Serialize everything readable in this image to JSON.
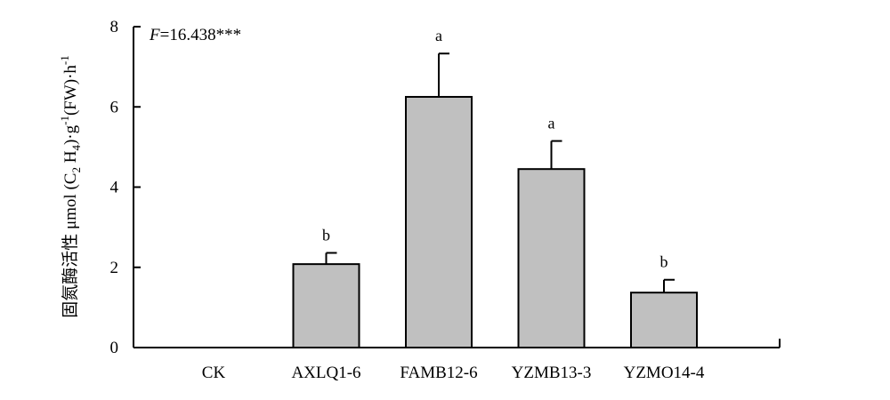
{
  "chart_data": {
    "type": "bar",
    "title": "",
    "xlabel": "",
    "ylabel": "固氮酶活性 μmol (C2 H4)·g-1(FW)·h-1",
    "ylabel_parts": {
      "prefix": "固氮酶活性 μmol (C",
      "sub1": "2",
      "mid1": " H",
      "sub2": "4",
      "mid2": ")·g",
      "sup1": "-1",
      "mid3": "(FW)·h",
      "sup2": "-1"
    },
    "ylim": [
      0,
      8
    ],
    "yticks": [
      "0",
      "2",
      "4",
      "6",
      "8"
    ],
    "categories": [
      "CK",
      "AXLQ1-6",
      "FAMB12-6",
      "YZMB13-3",
      "YZMO14-4"
    ],
    "values": [
      0,
      2.08,
      6.25,
      4.45,
      1.37
    ],
    "errors": [
      0,
      0.28,
      1.08,
      0.7,
      0.32
    ],
    "significance": [
      "",
      "b",
      "a",
      "a",
      "b"
    ],
    "stat_annotation": {
      "italic": "F",
      "rest": "=16.438***"
    },
    "bar_color": "#c0c0c0",
    "grid": false
  }
}
